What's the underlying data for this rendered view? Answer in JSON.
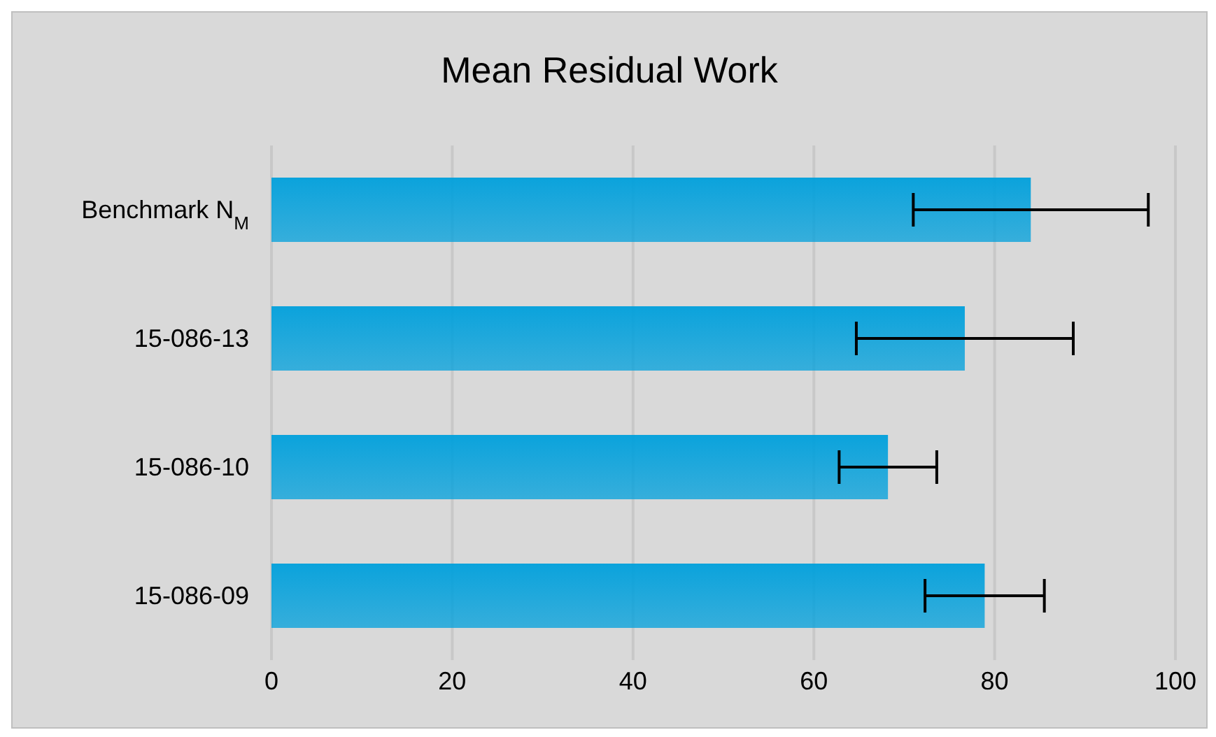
{
  "chart_data": {
    "type": "bar",
    "orientation": "horizontal",
    "title": "Mean Residual Work",
    "categories": [
      "Benchmark N$_{M}$",
      "15-086-13",
      "15-086-10",
      "15-086-09"
    ],
    "values": [
      84,
      76.7,
      68.2,
      78.9
    ],
    "errors": [
      13,
      12,
      5.4,
      6.6
    ],
    "color": "#00a0dc",
    "xlim": [
      0,
      100
    ],
    "xticks": [
      0,
      20,
      40,
      60,
      80,
      100
    ],
    "grid": "x"
  }
}
